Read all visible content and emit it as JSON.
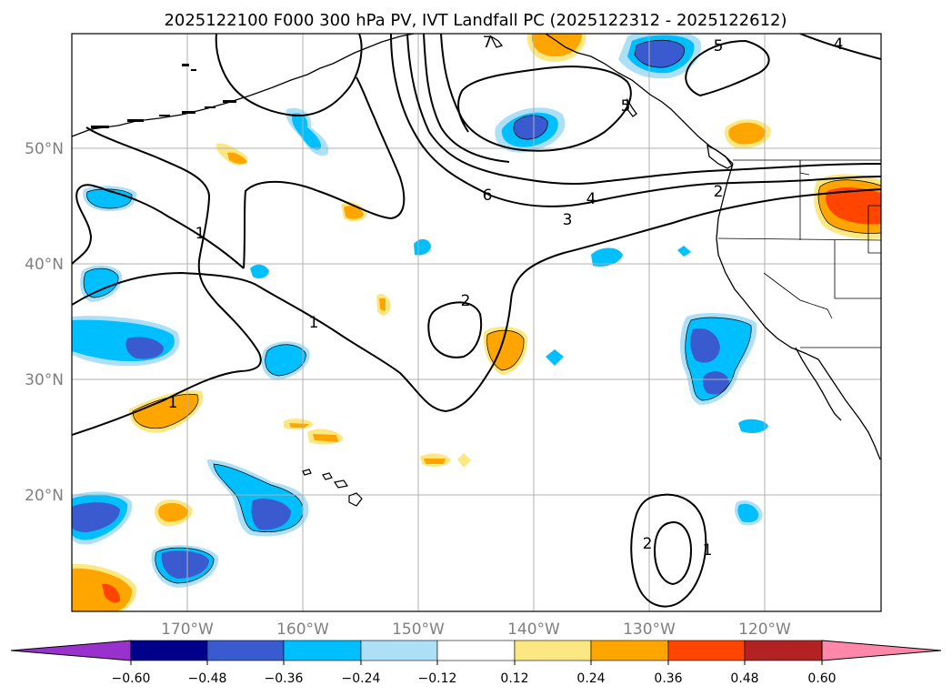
{
  "title": "2025122100 F000 300 hPa PV, IVT Landfall PC (2025122312 - 2025122612)",
  "map": {
    "lon_labels": [
      "170°W",
      "160°W",
      "150°W",
      "140°W",
      "130°W",
      "120°W"
    ],
    "lat_labels": [
      "50°N",
      "40°N",
      "30°N",
      "20°N"
    ],
    "contour_labels": [
      "7",
      "5",
      "4",
      "5",
      "6",
      "4",
      "3",
      "2",
      "1",
      "1",
      "2",
      "1",
      "2",
      "1"
    ]
  },
  "colorbar": {
    "ticks": [
      "−0.60",
      "−0.48",
      "−0.36",
      "−0.24",
      "−0.12",
      "0.12",
      "0.24",
      "0.36",
      "0.48",
      "0.60"
    ],
    "colors": [
      "#9932cc",
      "#00008b",
      "#3a5bd0",
      "#00bfff",
      "#ade0f7",
      "#ffffff",
      "#fce883",
      "#ffa500",
      "#ff4500",
      "#b22222",
      "#ff88aa"
    ]
  },
  "colors": {
    "neg_dark": "#3a5bd0",
    "neg_mid": "#00bfff",
    "neg_light": "#ade0f7",
    "pos_light": "#fce883",
    "pos_mid": "#ffa500",
    "pos_dark": "#ff4500"
  }
}
